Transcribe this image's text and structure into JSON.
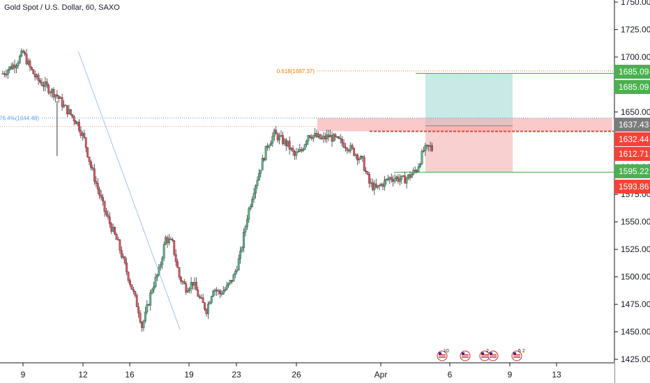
{
  "header": {
    "symbol_title": "Gold Spot / U.S. Dollar, 60, SAXO"
  },
  "colors": {
    "up": "#26a69a",
    "down": "#ef5350",
    "candle_fill_up": "#53b987",
    "candle_fill_down": "#eb4d5c",
    "target_zone": "#b2dfdb",
    "stop_zone": "#f8c8c8",
    "green_line": "#4caf50",
    "red_line": "#f44336",
    "fib_orange": "#f57c00",
    "fib_blue": "#5b9cf6",
    "gray_tag": "#7b7b7b"
  },
  "chart_data": {
    "type": "candlestick",
    "xlabel": "",
    "ylabel": "",
    "ylim": [
      1425,
      1750
    ],
    "y_ticks": [
      1425,
      1450,
      1475,
      1500,
      1525,
      1550,
      1575,
      1600,
      1625,
      1650,
      1675,
      1700,
      1725,
      1750
    ],
    "y_tick_labels": [
      "1425.00",
      "1450.00",
      "1475.00",
      "1500.00",
      "1525.00",
      "1550.00",
      "1575.00",
      "1600.00",
      "1625.00",
      "1650.00",
      "1675.00",
      "1700.00",
      "1725.00",
      "1750.00"
    ],
    "x_ticks": [
      "9",
      "12",
      "16",
      "19",
      "23",
      "26",
      "Apr",
      "6",
      "9",
      "13"
    ],
    "price_path": [
      [
        0,
        1685
      ],
      [
        4,
        1695
      ],
      [
        6,
        1704
      ],
      [
        8,
        1690
      ],
      [
        10,
        1680
      ],
      [
        14,
        1670
      ],
      [
        16,
        1665
      ],
      [
        18,
        1655
      ],
      [
        20,
        1648
      ],
      [
        22,
        1640
      ],
      [
        24,
        1625
      ],
      [
        26,
        1600
      ],
      [
        28,
        1580
      ],
      [
        30,
        1560
      ],
      [
        32,
        1545
      ],
      [
        34,
        1530
      ],
      [
        36,
        1510
      ],
      [
        38,
        1490
      ],
      [
        40,
        1470
      ],
      [
        41,
        1455
      ],
      [
        42,
        1465
      ],
      [
        44,
        1490
      ],
      [
        46,
        1505
      ],
      [
        48,
        1535
      ],
      [
        50,
        1530
      ],
      [
        52,
        1500
      ],
      [
        54,
        1490
      ],
      [
        56,
        1495
      ],
      [
        58,
        1480
      ],
      [
        60,
        1470
      ],
      [
        62,
        1490
      ],
      [
        64,
        1485
      ],
      [
        66,
        1490
      ],
      [
        68,
        1500
      ],
      [
        70,
        1520
      ],
      [
        72,
        1555
      ],
      [
        74,
        1580
      ],
      [
        76,
        1600
      ],
      [
        78,
        1620
      ],
      [
        80,
        1630
      ],
      [
        82,
        1625
      ],
      [
        84,
        1620
      ],
      [
        86,
        1610
      ],
      [
        88,
        1615
      ],
      [
        90,
        1630
      ],
      [
        92,
        1628
      ],
      [
        94,
        1625
      ],
      [
        96,
        1628
      ],
      [
        98,
        1625
      ],
      [
        100,
        1622
      ],
      [
        102,
        1618
      ],
      [
        104,
        1612
      ],
      [
        106,
        1605
      ],
      [
        108,
        1585
      ],
      [
        110,
        1580
      ],
      [
        112,
        1585
      ],
      [
        114,
        1590
      ],
      [
        116,
        1590
      ],
      [
        118,
        1588
      ],
      [
        120,
        1592
      ],
      [
        122,
        1598
      ],
      [
        124,
        1615
      ],
      [
        126,
        1618
      ],
      [
        127,
        1614
      ]
    ],
    "trendline": {
      "from": [
        12,
        1705
      ],
      "to": [
        44,
        1452
      ]
    },
    "fib_levels": [
      {
        "label": "0.618(1687.37)",
        "value": 1687.37,
        "color": "fib_orange"
      },
      {
        "label": "76.4%(1644.48)",
        "value": 1644.48,
        "color": "fib_blue"
      }
    ],
    "horizontal_lines": [
      {
        "value": 1685.09,
        "color": "green_line"
      },
      {
        "value": 1595.22,
        "color": "green_line"
      },
      {
        "value": 1632.44,
        "color": "red_line",
        "style": "dashed"
      }
    ],
    "zones": [
      {
        "kind": "target",
        "top": 1685.09,
        "bottom": 1637.43
      },
      {
        "kind": "stop",
        "top": 1637.43,
        "bottom": 1595.22
      },
      {
        "kind": "resistance",
        "top": 1644.5,
        "bottom": 1632.5
      }
    ],
    "price_tags": [
      {
        "value": 1685.09,
        "label": "1685.09",
        "color": "green_line"
      },
      {
        "value": 1685.09,
        "label": "1685.09",
        "color": "green_line",
        "offset": 1
      },
      {
        "value": 1637.43,
        "label": "1637.43",
        "color": "gray_tag"
      },
      {
        "value": 1632.44,
        "label": "1632.44",
        "color": "red_line"
      },
      {
        "value": 1612.71,
        "label": "1612.71",
        "color": "red_line"
      },
      {
        "value": 1595.22,
        "label": "1595.22",
        "color": "green_line"
      },
      {
        "value": 1593.86,
        "label": "1593.86",
        "color": "red_line"
      }
    ],
    "event_icons": [
      "flag-us-icon",
      "flag-us-icon",
      "flag-us-icon",
      "flag-us-icon",
      "flag-us-icon"
    ],
    "event_icon_counts": [
      "10",
      "",
      "2",
      "",
      "5 2"
    ]
  }
}
